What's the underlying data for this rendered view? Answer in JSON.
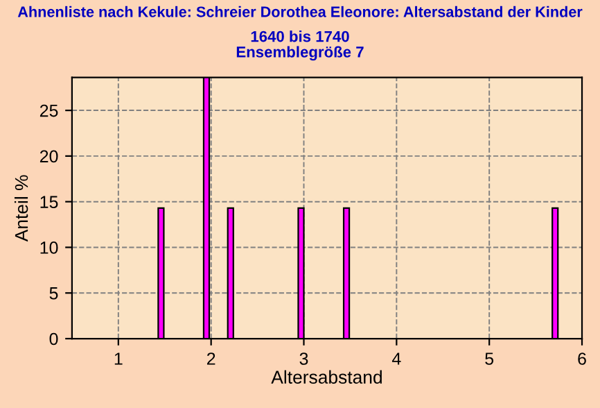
{
  "chart_data": {
    "type": "bar",
    "title": "Ahnenliste nach Kekule: Schreier Dorothea Eleonore: Altersabstand der Kinder",
    "subtitle": "1640 bis 1740\nEnsemblegröße 7",
    "xlabel": "Altersabstand",
    "ylabel": "Anteil %",
    "x": [
      1.46,
      1.95,
      2.21,
      2.97,
      3.46,
      5.71
    ],
    "series": [
      {
        "color": "#ff00ff",
        "values": [
          14.3,
          28.6,
          14.3,
          14.3,
          14.3,
          14.3
        ]
      }
    ],
    "xlim": [
      0.5,
      6
    ],
    "xticks": [
      1,
      2,
      3,
      4,
      5,
      6
    ],
    "ylim": [
      0,
      28.6
    ],
    "yticks": [
      0,
      5,
      10,
      15,
      20,
      25
    ],
    "grid": true
  }
}
